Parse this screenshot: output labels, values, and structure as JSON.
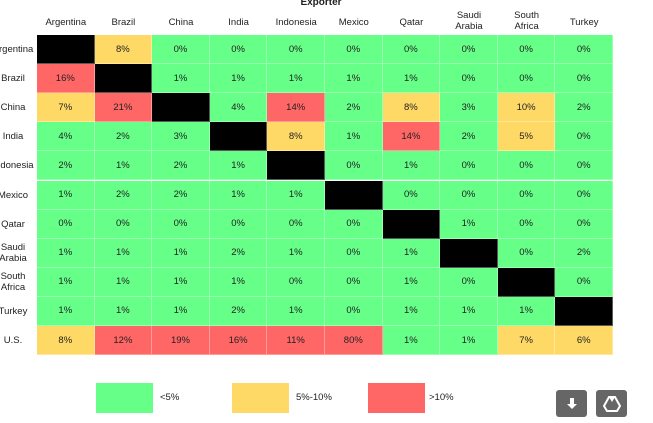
{
  "chart_data": {
    "type": "heatmap",
    "title": "Exporter",
    "columns": [
      "Argentina",
      "Brazil",
      "China",
      "India",
      "Indonesia",
      "Mexico",
      "Qatar",
      "Saudi Arabia",
      "South Africa",
      "Turkey"
    ],
    "rows": [
      "Argentina",
      "Brazil",
      "China",
      "India",
      "Indonesia",
      "Mexico",
      "Qatar",
      "Saudi Arabia",
      "South Africa",
      "Turkey",
      "U.S."
    ],
    "values": [
      [
        null,
        8,
        0,
        0,
        0,
        0,
        0,
        0,
        0,
        0
      ],
      [
        16,
        null,
        1,
        1,
        1,
        1,
        1,
        0,
        0,
        0
      ],
      [
        7,
        21,
        null,
        4,
        14,
        2,
        8,
        3,
        10,
        2
      ],
      [
        4,
        2,
        3,
        null,
        8,
        1,
        14,
        2,
        5,
        0
      ],
      [
        2,
        1,
        2,
        1,
        null,
        0,
        1,
        0,
        0,
        0
      ],
      [
        1,
        2,
        2,
        1,
        1,
        null,
        0,
        0,
        0,
        0
      ],
      [
        0,
        0,
        0,
        0,
        0,
        0,
        null,
        1,
        0,
        0
      ],
      [
        1,
        1,
        1,
        2,
        1,
        0,
        1,
        null,
        0,
        2
      ],
      [
        1,
        1,
        1,
        1,
        0,
        0,
        1,
        0,
        null,
        0
      ],
      [
        1,
        1,
        1,
        2,
        1,
        0,
        1,
        1,
        1,
        null
      ],
      [
        8,
        12,
        19,
        16,
        11,
        80,
        1,
        1,
        7,
        6
      ]
    ],
    "value_suffix": "%",
    "legend": [
      {
        "label": "<5%",
        "color": "#66ff88"
      },
      {
        "label": "5%-10%",
        "color": "#ffd966"
      },
      {
        "label": ">10%",
        "color": "#ff6666"
      }
    ],
    "diagonal_color": "#000000"
  },
  "buttons": {
    "download": {
      "icon": "download-icon"
    },
    "drive": {
      "icon": "google-drive-icon"
    }
  }
}
